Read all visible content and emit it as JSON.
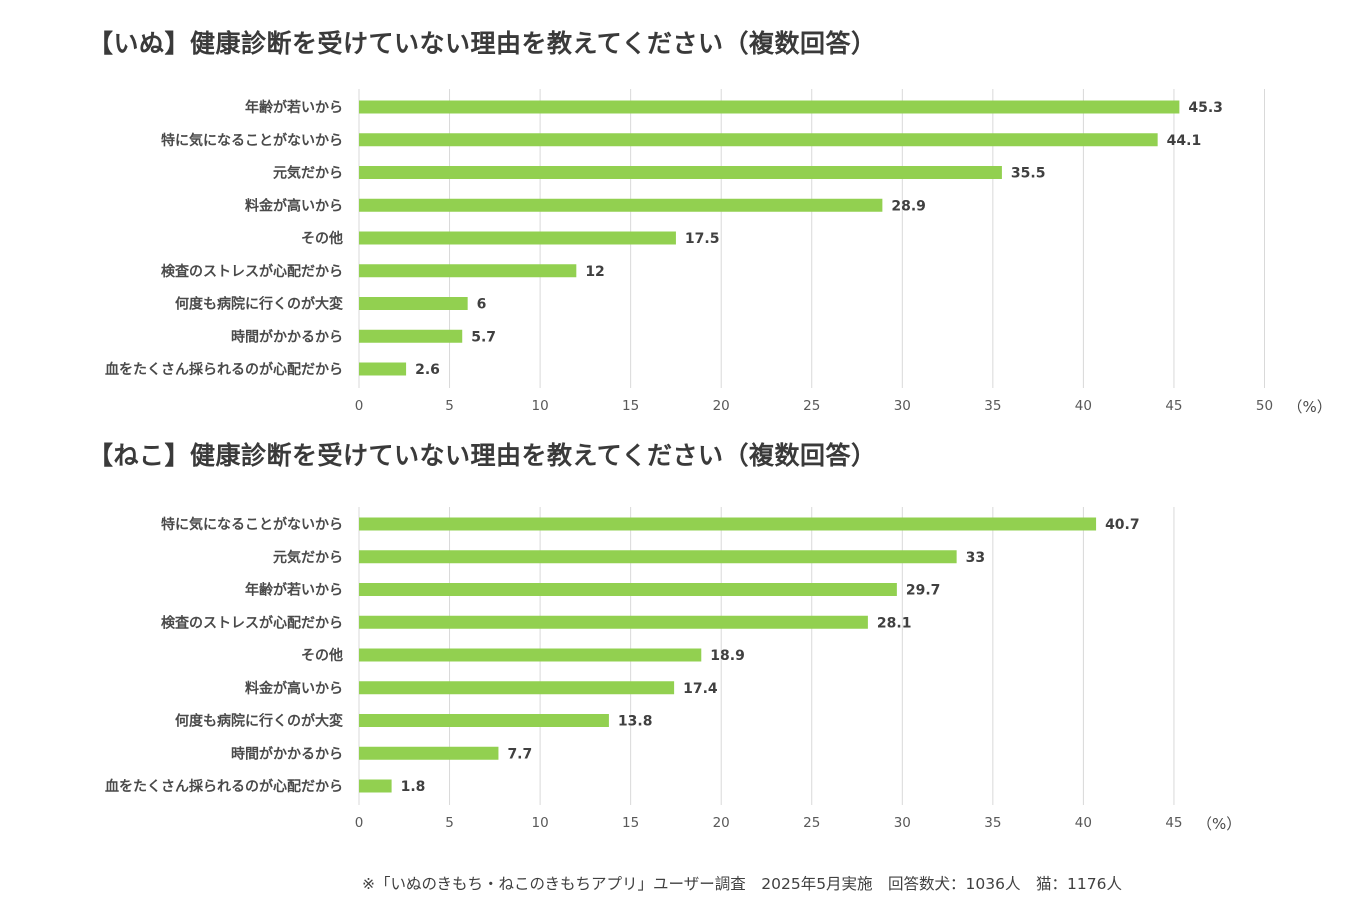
{
  "colors": {
    "bar": "#92d050",
    "grid": "#d9d9d9",
    "text": "#404040"
  },
  "chart_data": [
    {
      "type": "bar",
      "orientation": "horizontal",
      "title": "【いぬ】健康診断を受けていない理由を教えてください（複数回答）",
      "categories": [
        "年齢が若いから",
        "特に気になることがないから",
        "元気だから",
        "料金が高いから",
        "その他",
        "検査のストレスが心配だから",
        "何度も病院に行くのが大変",
        "時間がかかるから",
        "血をたくさん採られるのが心配だから"
      ],
      "values": [
        45.3,
        44.1,
        35.5,
        28.9,
        17.5,
        12,
        6,
        5.7,
        2.6
      ],
      "value_labels": [
        "45.3",
        "44.1",
        "35.5",
        "28.9",
        "17.5",
        "12",
        "6",
        "5.7",
        "2.6"
      ],
      "xlim": [
        0,
        50
      ],
      "ticks": [
        "0",
        "5",
        "10",
        "15",
        "20",
        "25",
        "30",
        "35",
        "40",
        "45",
        "50"
      ],
      "unit": "（%）",
      "grid": true
    },
    {
      "type": "bar",
      "orientation": "horizontal",
      "title": "【ねこ】健康診断を受けていない理由を教えてください（複数回答）",
      "categories": [
        "特に気になることがないから",
        "元気だから",
        "年齢が若いから",
        "検査のストレスが心配だから",
        "その他",
        "料金が高いから",
        "何度も病院に行くのが大変",
        "時間がかかるから",
        "血をたくさん採られるのが心配だから"
      ],
      "values": [
        40.7,
        33,
        29.7,
        28.1,
        18.9,
        17.4,
        13.8,
        7.7,
        1.8
      ],
      "value_labels": [
        "40.7",
        "33",
        "29.7",
        "28.1",
        "18.9",
        "17.4",
        "13.8",
        "7.7",
        "1.8"
      ],
      "xlim": [
        0,
        45
      ],
      "ticks": [
        "0",
        "5",
        "10",
        "15",
        "20",
        "25",
        "30",
        "35",
        "40",
        "45"
      ],
      "unit": "（%）",
      "grid": true
    }
  ],
  "footnote": "※「いぬのきもち・ねこのきもちアプリ」ユーザー調査　2025年5月実施　回答数犬：1036人　猫：1176人"
}
